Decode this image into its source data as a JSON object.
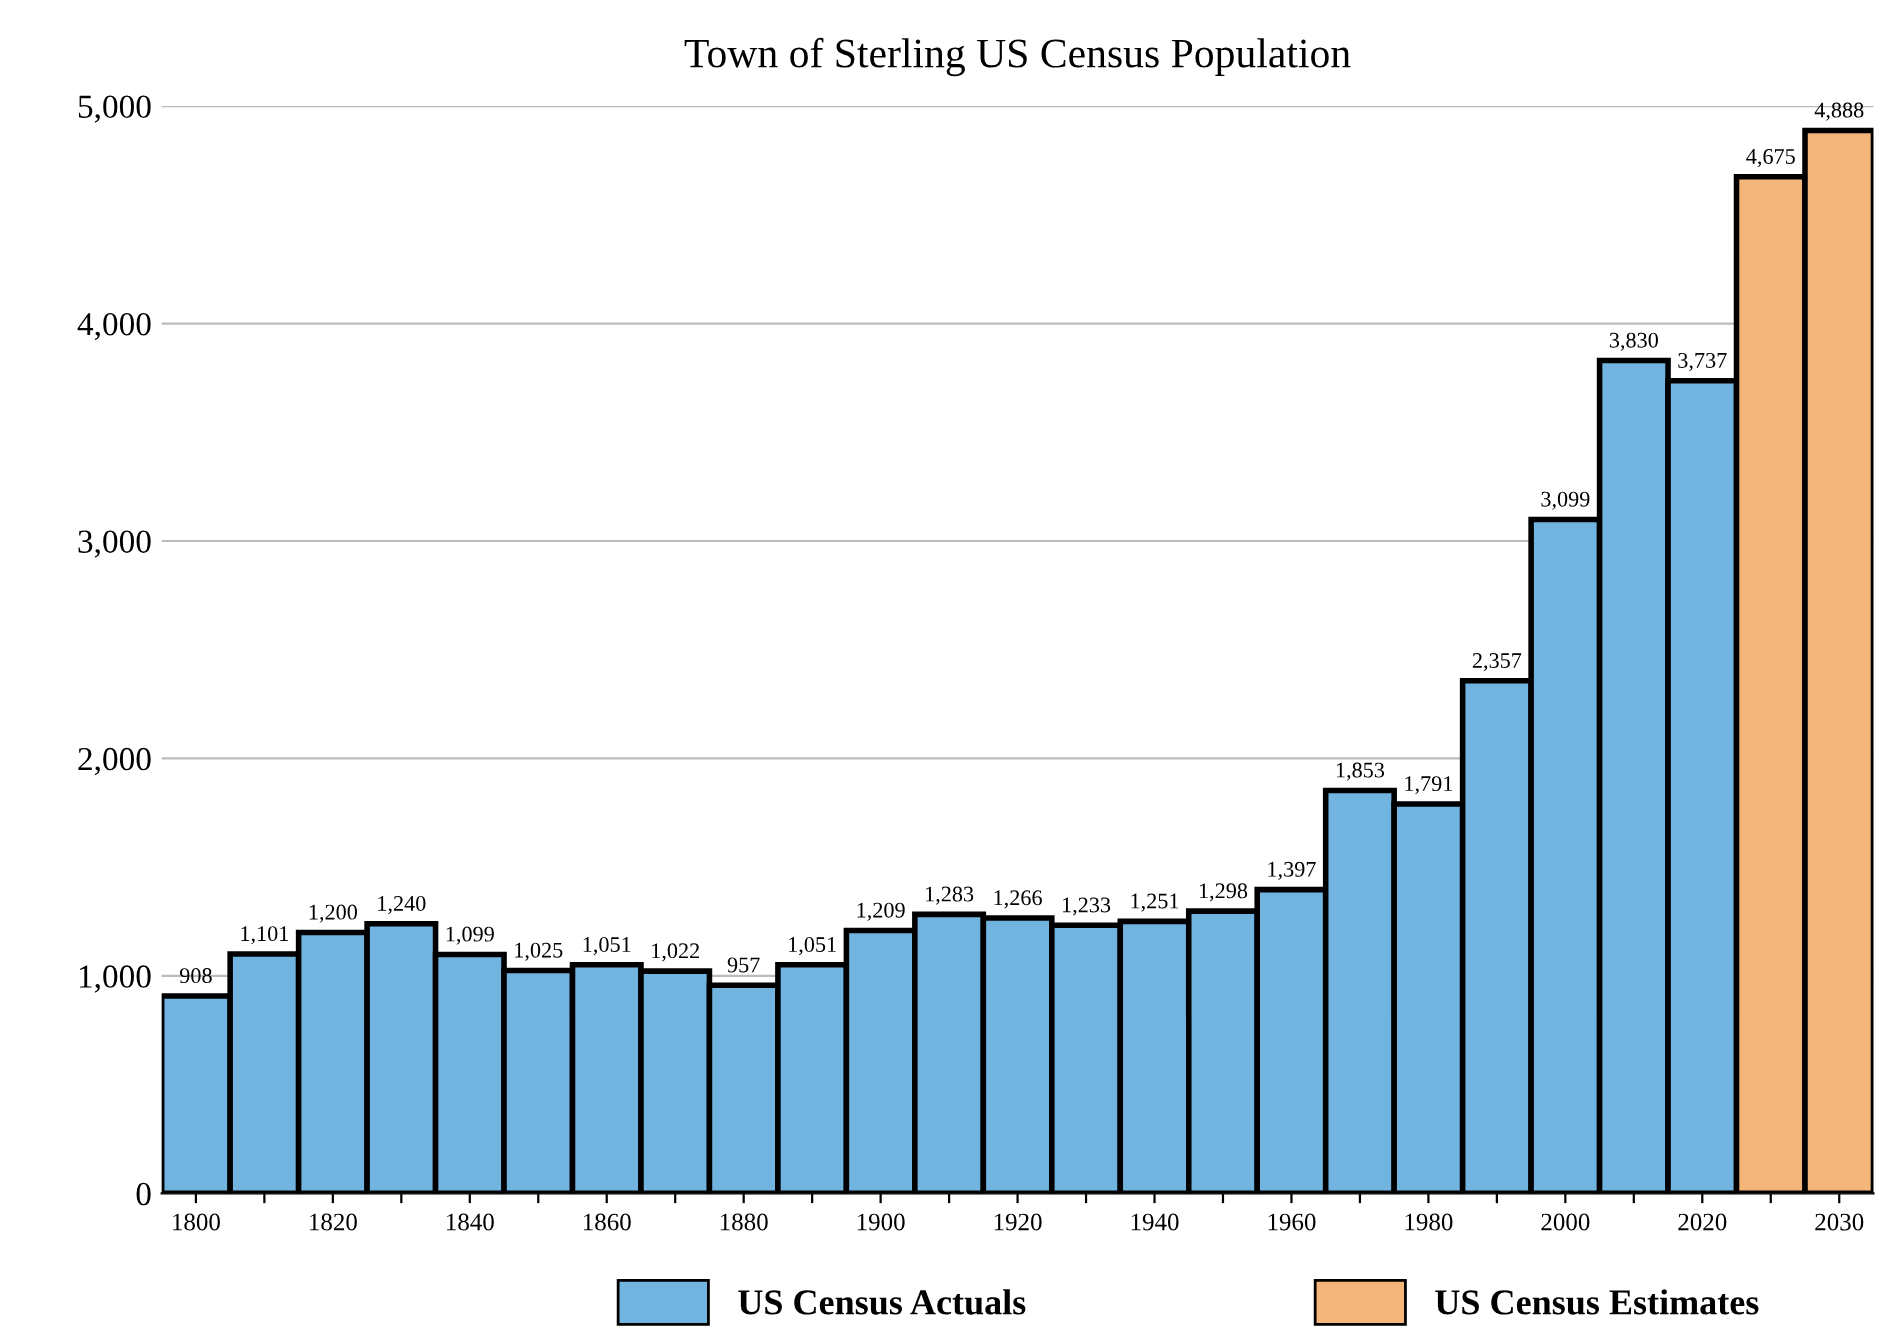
{
  "chart_data": {
    "type": "bar",
    "title": "Town of Sterling US Census Population",
    "categories": [
      "1800",
      null,
      "1820",
      null,
      "1840",
      null,
      "1860",
      null,
      "1880",
      null,
      "1900",
      null,
      "1920",
      null,
      "1940",
      null,
      "1960",
      null,
      "1980",
      null,
      "2000",
      null,
      "2020",
      null,
      "2030"
    ],
    "series": [
      {
        "name": "US Census Actuals",
        "color": "#72b4e0",
        "values": [
          908,
          1101,
          1200,
          1240,
          1099,
          1025,
          1051,
          1022,
          957,
          1051,
          1209,
          1283,
          1266,
          1233,
          1251,
          1298,
          1397,
          1853,
          1791,
          2357,
          3099,
          3830,
          3737,
          null,
          null
        ],
        "value_labels": [
          "908",
          "1,101",
          "1,200",
          "1,240",
          "1,099",
          "1,025",
          "1,051",
          "1,022",
          "957",
          "1,051",
          "1,209",
          "1,283",
          "1,266",
          "1,233",
          "1,251",
          "1,298",
          "1,397",
          "1,853",
          "1,791",
          "2,357",
          "3,099",
          "3,830",
          "3,737",
          null,
          null
        ]
      },
      {
        "name": "US Census Estimates",
        "color": "#f3b57a",
        "values": [
          null,
          null,
          null,
          null,
          null,
          null,
          null,
          null,
          null,
          null,
          null,
          null,
          null,
          null,
          null,
          null,
          null,
          null,
          null,
          null,
          null,
          null,
          null,
          4675,
          4888
        ],
        "value_labels": [
          null,
          null,
          null,
          null,
          null,
          null,
          null,
          null,
          null,
          null,
          null,
          null,
          null,
          null,
          null,
          null,
          null,
          null,
          null,
          null,
          null,
          null,
          null,
          "4,675",
          "4,888"
        ]
      }
    ],
    "ylim": [
      0,
      5000
    ],
    "yticks": [
      0,
      {
        "value": 1000,
        "label": "1,000"
      },
      {
        "value": 2000,
        "label": "2,000"
      },
      {
        "value": 3000,
        "label": "3,000"
      },
      {
        "value": 4000,
        "label": "4,000"
      },
      {
        "value": 5000,
        "label": "5,000"
      }
    ],
    "grid": "y",
    "legend": "bottom"
  }
}
